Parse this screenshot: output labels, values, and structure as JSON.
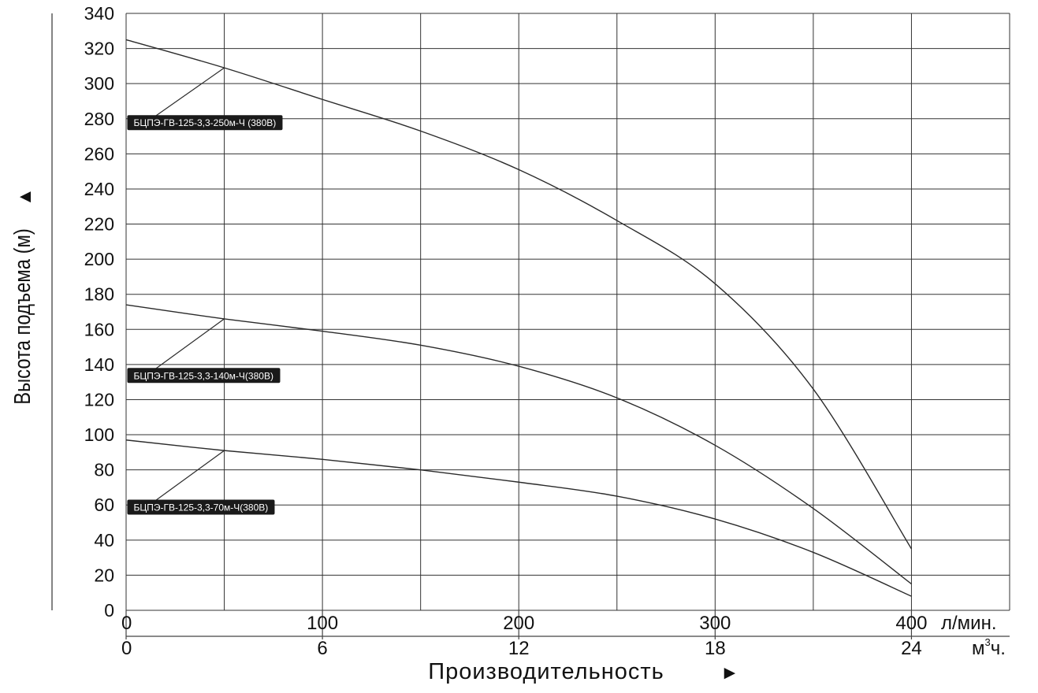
{
  "chart_data": {
    "type": "line",
    "ylabel": "Высота подъема (м)",
    "ylabel_arrow": "▲",
    "xlabel": "Производительность",
    "xlabel_arrow": "►",
    "x_unit_primary": "л/мин.",
    "x_unit_secondary_base": "м",
    "x_unit_secondary_sup": "3",
    "x_unit_secondary_tail": "ч.",
    "xlim": [
      0,
      450
    ],
    "ylim": [
      0,
      340
    ],
    "x_gridlines": [
      0,
      50,
      100,
      150,
      200,
      250,
      300,
      350,
      400,
      450
    ],
    "y_ticks": [
      0,
      20,
      40,
      60,
      80,
      100,
      120,
      140,
      160,
      180,
      200,
      220,
      240,
      260,
      280,
      300,
      320,
      340
    ],
    "x_ticks_primary": [
      {
        "value": 0,
        "label": "0"
      },
      {
        "value": 100,
        "label": "100"
      },
      {
        "value": 200,
        "label": "200"
      },
      {
        "value": 300,
        "label": "300"
      },
      {
        "value": 400,
        "label": "400"
      }
    ],
    "x_ticks_secondary": [
      {
        "value": 0,
        "label": "0"
      },
      {
        "value": 100,
        "label": "6"
      },
      {
        "value": 200,
        "label": "12"
      },
      {
        "value": 300,
        "label": "18"
      },
      {
        "value": 400,
        "label": "24"
      }
    ],
    "grid": true,
    "line_color": "#2b2b2b",
    "label_bg": "#1a1a1a",
    "label_fg": "#ffffff",
    "series": [
      {
        "name": "БЦПЭ-ГВ-125-3,3-250м-Ч (380В)",
        "anchor": {
          "x": 50,
          "y": 309
        },
        "label_pos": {
          "x": 3,
          "y": 278
        },
        "x": [
          0,
          50,
          100,
          150,
          200,
          250,
          300,
          350,
          400
        ],
        "y": [
          325,
          309,
          291,
          273,
          251,
          222,
          186,
          126,
          35
        ]
      },
      {
        "name": "БЦПЭ-ГВ-125-3,3-140м-Ч(380В)",
        "anchor": {
          "x": 50,
          "y": 166
        },
        "label_pos": {
          "x": 3,
          "y": 134
        },
        "x": [
          0,
          50,
          100,
          150,
          200,
          250,
          300,
          350,
          400
        ],
        "y": [
          174,
          166,
          159,
          151,
          139,
          121,
          94,
          58,
          15
        ]
      },
      {
        "name": "БЦПЭ-ГВ-125-3,3-70м-Ч(380В)",
        "anchor": {
          "x": 50,
          "y": 91
        },
        "label_pos": {
          "x": 3,
          "y": 59
        },
        "x": [
          0,
          50,
          100,
          150,
          200,
          250,
          300,
          350,
          400
        ],
        "y": [
          97,
          91,
          86,
          80,
          73,
          65,
          52,
          33,
          8
        ]
      }
    ]
  }
}
